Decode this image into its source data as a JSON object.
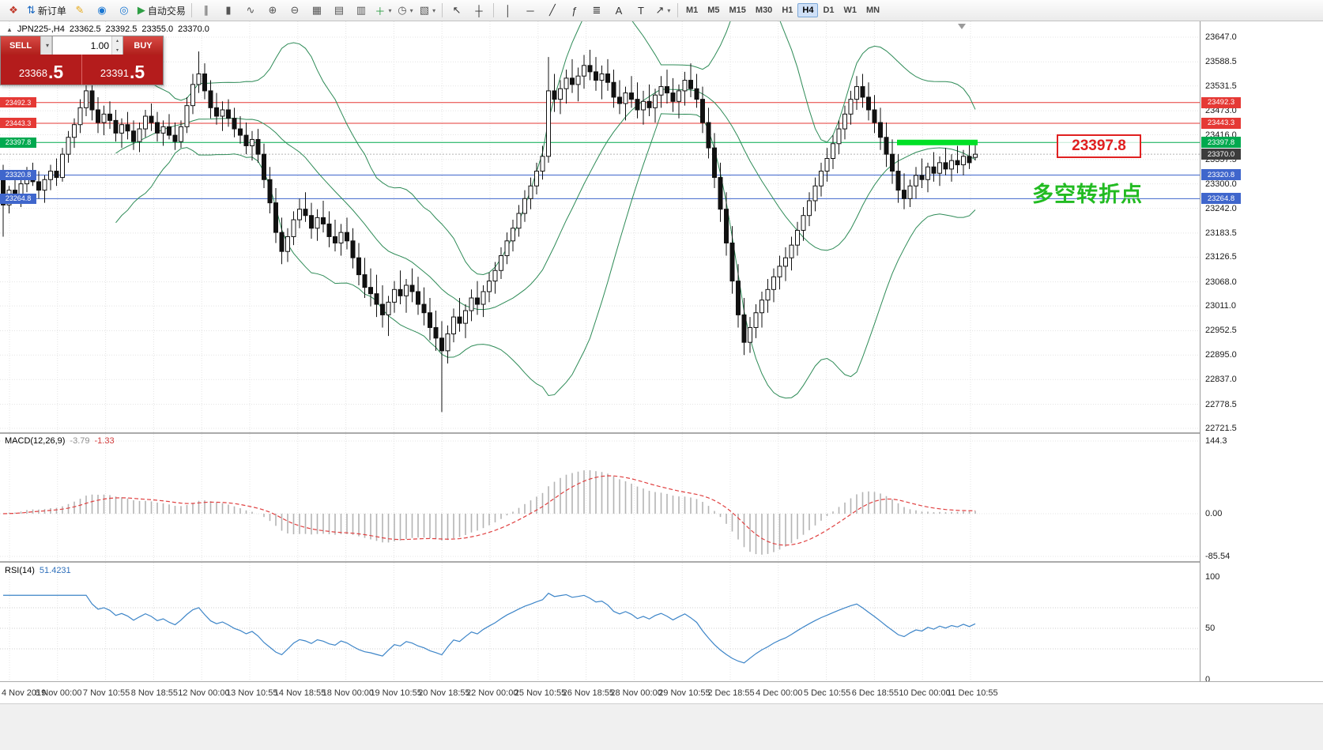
{
  "toolbar": {
    "groups": [
      {
        "name": "standard-group",
        "items": [
          {
            "name": "app-icon",
            "interactable": false
          },
          {
            "name": "new-order-button",
            "label": "新订单",
            "interactable": true
          },
          {
            "name": "metaeditor-button",
            "interactable": true
          },
          {
            "name": "profiles-button",
            "interactable": true
          },
          {
            "name": "refresh-button",
            "interactable": true
          },
          {
            "name": "auto-trading-button",
            "label": "自动交易",
            "interactable": true
          }
        ]
      },
      {
        "name": "chart-group",
        "items": [
          {
            "name": "bar-chart-button",
            "interactable": true
          },
          {
            "name": "candle-chart-button",
            "interactable": true
          },
          {
            "name": "line-chart-button",
            "interactable": true
          },
          {
            "name": "zoom-in-button",
            "interactable": true
          },
          {
            "name": "zoom-out-button",
            "interactable": true
          },
          {
            "name": "grid-button",
            "interactable": true
          },
          {
            "name": "tile-horizontal-button",
            "interactable": true
          },
          {
            "name": "tile-vertical-button",
            "interactable": true
          },
          {
            "name": "add-indicator-button",
            "caret": true,
            "interactable": true
          },
          {
            "name": "period-button",
            "caret": true,
            "interactable": true
          },
          {
            "name": "templates-button",
            "caret": true,
            "interactable": true
          }
        ]
      },
      {
        "name": "cursor-group",
        "items": [
          {
            "name": "cursor-button",
            "interactable": true
          },
          {
            "name": "crosshair-button",
            "interactable": true
          }
        ]
      },
      {
        "name": "objects-group",
        "items": [
          {
            "name": "vertical-line-button",
            "interactable": true
          },
          {
            "name": "horizontal-line-button",
            "interactable": true
          },
          {
            "name": "trendline-button",
            "interactable": true
          },
          {
            "name": "fibonacci-button",
            "interactable": true
          },
          {
            "name": "channel-button",
            "interactable": true
          },
          {
            "name": "text-button",
            "interactable": true
          },
          {
            "name": "label-button",
            "interactable": true
          },
          {
            "name": "arrows-button",
            "caret": true,
            "interactable": true
          }
        ]
      },
      {
        "name": "timeframe-group",
        "items": [
          {
            "name": "tf-M1",
            "label": "M1",
            "interactable": true
          },
          {
            "name": "tf-M5",
            "label": "M5",
            "interactable": true
          },
          {
            "name": "tf-M15",
            "label": "M15",
            "interactable": true
          },
          {
            "name": "tf-M30",
            "label": "M30",
            "interactable": true
          },
          {
            "name": "tf-H1",
            "label": "H1",
            "interactable": true
          },
          {
            "name": "tf-H4",
            "label": "H4",
            "active": true,
            "interactable": true
          },
          {
            "name": "tf-D1",
            "label": "D1",
            "interactable": true
          },
          {
            "name": "tf-W1",
            "label": "W1",
            "interactable": true
          },
          {
            "name": "tf-MN",
            "label": "MN",
            "interactable": true
          }
        ]
      }
    ]
  },
  "chart": {
    "title": "JPN225-,H4",
    "ohlc": {
      "open": "23362.5",
      "high": "23392.5",
      "low": "23355.0",
      "close": "23370.0"
    },
    "one_click": {
      "sell_label": "SELL",
      "buy_label": "BUY",
      "volume": "1.00",
      "sell_price_main": "23368",
      "sell_price_pips": ".5",
      "buy_price_main": "23391",
      "buy_price_pips": ".5"
    },
    "price_axis_labels": [
      "23647.0",
      "23588.5",
      "23531.5",
      "23473.0",
      "23416.0",
      "23357.5",
      "23300.0",
      "23242.0",
      "23183.5",
      "23126.5",
      "23068.0",
      "23011.0",
      "22952.5",
      "22895.0",
      "22837.0",
      "22778.5",
      "22721.5"
    ],
    "time_axis_labels": [
      "4 Nov 2019",
      "6 Nov 00:00",
      "7 Nov 10:55",
      "8 Nov 18:55",
      "12 Nov 00:00",
      "13 Nov 10:55",
      "14 Nov 18:55",
      "18 Nov 00:00",
      "19 Nov 10:55",
      "20 Nov 18:55",
      "22 Nov 00:00",
      "25 Nov 10:55",
      "26 Nov 18:55",
      "28 Nov 00:00",
      "29 Nov 10:55",
      "2 Dec 18:55",
      "4 Dec 00:00",
      "5 Dec 10:55",
      "6 Dec 18:55",
      "10 Dec 00:00",
      "11 Dec 10:55"
    ],
    "hlines": [
      {
        "label": "23492.3",
        "price": 23492.3,
        "type": "resistance"
      },
      {
        "label": "23443.3",
        "price": 23443.3,
        "type": "resistance"
      },
      {
        "label": "23397.8",
        "price": 23397.8,
        "type": "pivot"
      },
      {
        "label": "23320.8",
        "price": 23320.8,
        "type": "support"
      },
      {
        "label": "23264.8",
        "price": 23264.8,
        "type": "support"
      }
    ],
    "bid": {
      "label": "23370.0",
      "price": 23370.0
    },
    "annotation_price": "23397.8",
    "annotation_text": "多空转折点"
  },
  "indicators": {
    "macd": {
      "label": "MACD(12,26,9)",
      "value_main": "-3.79",
      "value_signal": "-1.33",
      "scale": [
        "144.3",
        "0.00",
        "-85.54"
      ]
    },
    "rsi": {
      "label": "RSI(14)",
      "value": "51.4231",
      "scale": [
        "100",
        "50",
        "0"
      ]
    }
  },
  "colors": {
    "up_candle": "#ffffff",
    "down_candle": "#111111",
    "candle_stroke": "#111111",
    "bollinger": "#2E8B57",
    "resistance": "#e53935",
    "pivot": "#00a94f",
    "support": "#3f66cc",
    "bid_tag": "#3c3c3c",
    "macd_histogram": "#b4b4b4",
    "macd_signal": "#e04040",
    "rsi_line": "#3d85c8",
    "highlight": "#00e026",
    "grid": "#e4e4e4"
  },
  "candles": [
    [
      23310,
      23345,
      23175,
      23250
    ],
    [
      23250,
      23295,
      23230,
      23285
    ],
    [
      23285,
      23315,
      23255,
      23265
    ],
    [
      23265,
      23310,
      23245,
      23300
    ],
    [
      23300,
      23340,
      23280,
      23325
    ],
    [
      23325,
      23350,
      23295,
      23305
    ],
    [
      23305,
      23330,
      23265,
      23285
    ],
    [
      23285,
      23320,
      23255,
      23310
    ],
    [
      23310,
      23345,
      23285,
      23330
    ],
    [
      23330,
      23360,
      23295,
      23315
    ],
    [
      23315,
      23385,
      23305,
      23370
    ],
    [
      23370,
      23425,
      23350,
      23410
    ],
    [
      23410,
      23455,
      23385,
      23440
    ],
    [
      23440,
      23500,
      23420,
      23480
    ],
    [
      23480,
      23590,
      23460,
      23520
    ],
    [
      23520,
      23555,
      23450,
      23475
    ],
    [
      23475,
      23505,
      23420,
      23445
    ],
    [
      23445,
      23485,
      23415,
      23465
    ],
    [
      23465,
      23495,
      23430,
      23450
    ],
    [
      23450,
      23475,
      23400,
      23420
    ],
    [
      23420,
      23455,
      23385,
      23440
    ],
    [
      23440,
      23470,
      23405,
      23425
    ],
    [
      23425,
      23450,
      23380,
      23400
    ],
    [
      23400,
      23445,
      23375,
      23430
    ],
    [
      23430,
      23475,
      23410,
      23460
    ],
    [
      23460,
      23490,
      23425,
      23445
    ],
    [
      23445,
      23470,
      23400,
      23420
    ],
    [
      23420,
      23450,
      23390,
      23435
    ],
    [
      23435,
      23465,
      23405,
      23415
    ],
    [
      23415,
      23445,
      23380,
      23400
    ],
    [
      23400,
      23450,
      23385,
      23435
    ],
    [
      23435,
      23505,
      23420,
      23485
    ],
    [
      23485,
      23560,
      23465,
      23535
    ],
    [
      23535,
      23613,
      23515,
      23560
    ],
    [
      23560,
      23585,
      23500,
      23520
    ],
    [
      23520,
      23545,
      23455,
      23480
    ],
    [
      23480,
      23515,
      23440,
      23460
    ],
    [
      23460,
      23495,
      23425,
      23475
    ],
    [
      23475,
      23500,
      23435,
      23455
    ],
    [
      23455,
      23480,
      23410,
      23430
    ],
    [
      23430,
      23460,
      23395,
      23415
    ],
    [
      23415,
      23445,
      23370,
      23390
    ],
    [
      23390,
      23425,
      23355,
      23405
    ],
    [
      23405,
      23430,
      23350,
      23370
    ],
    [
      23370,
      23395,
      23290,
      23310
    ],
    [
      23310,
      23340,
      23230,
      23255
    ],
    [
      23255,
      23290,
      23160,
      23185
    ],
    [
      23185,
      23220,
      23110,
      23140
    ],
    [
      23140,
      23195,
      23115,
      23175
    ],
    [
      23175,
      23235,
      23155,
      23215
    ],
    [
      23215,
      23265,
      23195,
      23240
    ],
    [
      23240,
      23280,
      23210,
      23225
    ],
    [
      23225,
      23255,
      23170,
      23195
    ],
    [
      23195,
      23240,
      23165,
      23220
    ],
    [
      23220,
      23260,
      23185,
      23205
    ],
    [
      23205,
      23235,
      23150,
      23175
    ],
    [
      23175,
      23215,
      23140,
      23160
    ],
    [
      23160,
      23205,
      23130,
      23185
    ],
    [
      23185,
      23220,
      23145,
      23165
    ],
    [
      23165,
      23195,
      23100,
      23125
    ],
    [
      23125,
      23160,
      23060,
      23085
    ],
    [
      23085,
      23125,
      23030,
      23055
    ],
    [
      23055,
      23100,
      23010,
      23040
    ],
    [
      23040,
      23085,
      22985,
      23015
    ],
    [
      23015,
      23060,
      22960,
      22990
    ],
    [
      22990,
      23035,
      22940,
      23020
    ],
    [
      23020,
      23070,
      22995,
      23050
    ],
    [
      23050,
      23095,
      23015,
      23035
    ],
    [
      23035,
      23075,
      22995,
      23060
    ],
    [
      23060,
      23100,
      23020,
      23045
    ],
    [
      23045,
      23080,
      22990,
      23015
    ],
    [
      23015,
      23055,
      22965,
      22995
    ],
    [
      22995,
      23030,
      22930,
      22960
    ],
    [
      22960,
      23000,
      22905,
      22935
    ],
    [
      22935,
      22975,
      22760,
      22905
    ],
    [
      22905,
      22965,
      22875,
      22945
    ],
    [
      22945,
      23005,
      22925,
      22985
    ],
    [
      22985,
      23030,
      22950,
      22970
    ],
    [
      22970,
      23015,
      22935,
      23000
    ],
    [
      23000,
      23050,
      22975,
      23030
    ],
    [
      23030,
      23070,
      22990,
      23015
    ],
    [
      23015,
      23060,
      22985,
      23045
    ],
    [
      23045,
      23090,
      23020,
      23070
    ],
    [
      23070,
      23115,
      23040,
      23095
    ],
    [
      23095,
      23150,
      23075,
      23130
    ],
    [
      23130,
      23185,
      23110,
      23165
    ],
    [
      23165,
      23215,
      23140,
      23195
    ],
    [
      23195,
      23250,
      23175,
      23230
    ],
    [
      23230,
      23285,
      23210,
      23265
    ],
    [
      23265,
      23315,
      23240,
      23295
    ],
    [
      23295,
      23350,
      23275,
      23330
    ],
    [
      23330,
      23390,
      23310,
      23365
    ],
    [
      23365,
      23600,
      23350,
      23520
    ],
    [
      23520,
      23560,
      23470,
      23500
    ],
    [
      23500,
      23545,
      23465,
      23525
    ],
    [
      23525,
      23570,
      23490,
      23550
    ],
    [
      23550,
      23595,
      23515,
      23535
    ],
    [
      23535,
      23575,
      23495,
      23555
    ],
    [
      23555,
      23605,
      23525,
      23580
    ],
    [
      23580,
      23617,
      23545,
      23565
    ],
    [
      23565,
      23600,
      23520,
      23545
    ],
    [
      23545,
      23580,
      23500,
      23560
    ],
    [
      23560,
      23595,
      23520,
      23540
    ],
    [
      23540,
      23570,
      23480,
      23505
    ],
    [
      23505,
      23545,
      23465,
      23490
    ],
    [
      23490,
      23530,
      23450,
      23515
    ],
    [
      23515,
      23555,
      23480,
      23500
    ],
    [
      23500,
      23540,
      23455,
      23475
    ],
    [
      23475,
      23520,
      23440,
      23495
    ],
    [
      23495,
      23535,
      23460,
      23480
    ],
    [
      23480,
      23525,
      23445,
      23510
    ],
    [
      23510,
      23555,
      23480,
      23530
    ],
    [
      23530,
      23570,
      23490,
      23515
    ],
    [
      23515,
      23550,
      23470,
      23495
    ],
    [
      23495,
      23535,
      23455,
      23520
    ],
    [
      23520,
      23565,
      23485,
      23545
    ],
    [
      23545,
      23585,
      23505,
      23525
    ],
    [
      23525,
      23560,
      23480,
      23500
    ],
    [
      23500,
      23530,
      23420,
      23445
    ],
    [
      23445,
      23480,
      23360,
      23385
    ],
    [
      23385,
      23420,
      23290,
      23315
    ],
    [
      23315,
      23350,
      23210,
      23240
    ],
    [
      23240,
      23280,
      23130,
      23160
    ],
    [
      23160,
      23200,
      23040,
      23070
    ],
    [
      23070,
      23110,
      22960,
      22990
    ],
    [
      22990,
      23030,
      22895,
      22925
    ],
    [
      22925,
      22985,
      22900,
      22960
    ],
    [
      22960,
      23015,
      22935,
      22995
    ],
    [
      22995,
      23045,
      22960,
      23025
    ],
    [
      23025,
      23075,
      22995,
      23050
    ],
    [
      23050,
      23100,
      23020,
      23080
    ],
    [
      23080,
      23130,
      23050,
      23105
    ],
    [
      23105,
      23150,
      23070,
      23125
    ],
    [
      23125,
      23175,
      23095,
      23155
    ],
    [
      23155,
      23210,
      23130,
      23190
    ],
    [
      23190,
      23245,
      23165,
      23225
    ],
    [
      23225,
      23280,
      23200,
      23260
    ],
    [
      23260,
      23315,
      23235,
      23295
    ],
    [
      23295,
      23350,
      23270,
      23330
    ],
    [
      23330,
      23385,
      23305,
      23360
    ],
    [
      23360,
      23415,
      23335,
      23395
    ],
    [
      23395,
      23450,
      23370,
      23430
    ],
    [
      23430,
      23485,
      23405,
      23465
    ],
    [
      23465,
      23520,
      23440,
      23500
    ],
    [
      23500,
      23555,
      23475,
      23530
    ],
    [
      23530,
      23560,
      23480,
      23505
    ],
    [
      23505,
      23540,
      23450,
      23475
    ],
    [
      23475,
      23510,
      23420,
      23445
    ],
    [
      23445,
      23480,
      23380,
      23410
    ],
    [
      23410,
      23445,
      23340,
      23370
    ],
    [
      23370,
      23405,
      23300,
      23330
    ],
    [
      23330,
      23370,
      23255,
      23285
    ],
    [
      23285,
      23325,
      23240,
      23265
    ],
    [
      23265,
      23310,
      23245,
      23295
    ],
    [
      23295,
      23340,
      23265,
      23320
    ],
    [
      23320,
      23360,
      23290,
      23310
    ],
    [
      23310,
      23350,
      23280,
      23340
    ],
    [
      23340,
      23375,
      23305,
      23325
    ],
    [
      23325,
      23365,
      23295,
      23350
    ],
    [
      23350,
      23385,
      23320,
      23335
    ],
    [
      23335,
      23370,
      23305,
      23355
    ],
    [
      23355,
      23390,
      23325,
      23345
    ],
    [
      23345,
      23380,
      23320,
      23365
    ],
    [
      23365,
      23395,
      23335,
      23350
    ],
    [
      23362.5,
      23392.5,
      23355,
      23370
    ]
  ]
}
